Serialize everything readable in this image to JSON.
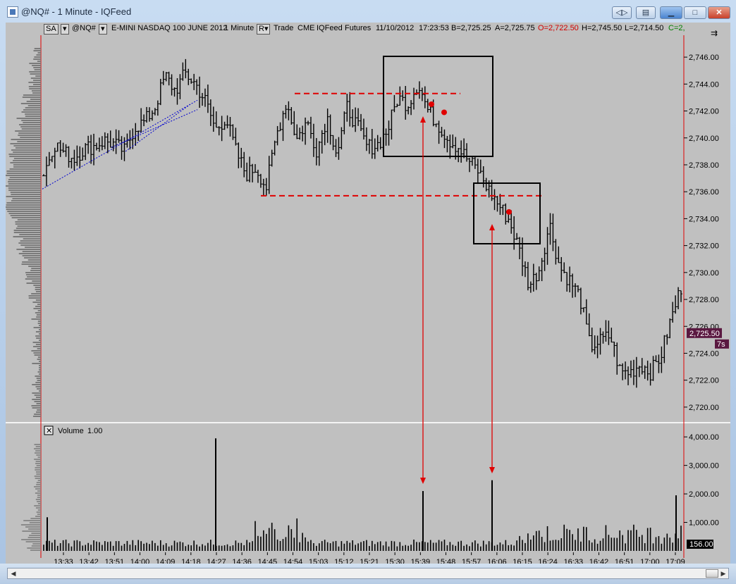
{
  "window": {
    "title": "@NQ# - 1 Minute - IQFeed"
  },
  "toolbar": {
    "studies_btn": "SA",
    "symbol": "@NQ#",
    "description": "E-MINI NASDAQ 100 JUNE 2012",
    "interval": "1 Minute",
    "r_btn": "R",
    "trade": "Trade",
    "exchange": "CME",
    "feed": "IQFeed",
    "type": "Futures",
    "date": "11/10/2012",
    "time": "17:23:53",
    "bid": "B=2,725.25",
    "ask": "A=2,725.75",
    "open": "O=2,722.50",
    "high": "H=2,745.50",
    "low": "L=2,714.50",
    "close": "C=2,"
  },
  "volume_panel": {
    "title": "Volume",
    "scale": "1.00",
    "close_glyph": "✕"
  },
  "price_marker": {
    "value": "2,725.50",
    "countdown": "7s"
  },
  "volume_marker": {
    "value": "156.00"
  },
  "colors": {
    "bar": "#000000",
    "background": "#c0c0c0",
    "red_lines": "#e00000",
    "marker": "#5a1840"
  },
  "chart_data": {
    "type": "ohlc",
    "price_axis": {
      "min": 2719,
      "max": 2747,
      "ticks": [
        "2,746.00",
        "2,744.00",
        "2,742.00",
        "2,740.00",
        "2,738.00",
        "2,736.00",
        "2,734.00",
        "2,732.00",
        "2,730.00",
        "2,728.00",
        "2,726.00",
        "2,724.00",
        "2,722.00",
        "2,720.00"
      ]
    },
    "volume_axis": {
      "min": 0,
      "max": 4400,
      "ticks": [
        "4,000.00",
        "3,000.00",
        "2,000.00",
        "1,000.00"
      ]
    },
    "time_labels": [
      "13:33",
      "13:42",
      "13:51",
      "14:00",
      "14:09",
      "14:18",
      "14:27",
      "14:36",
      "14:45",
      "14:54",
      "15:03",
      "15:12",
      "15:21",
      "15:30",
      "15:39",
      "15:48",
      "15:57",
      "16:06",
      "16:15",
      "16:24",
      "16:33",
      "16:42",
      "16:51",
      "17:00",
      "17:09"
    ],
    "close_path": [
      2737.3,
      2739.6,
      2738.9,
      2738.5,
      2739.2,
      2739.4,
      2739.8,
      2739.5,
      2739.0,
      2740.8,
      2741.2,
      2742.3,
      2744.6,
      2743.5,
      2744.8,
      2744.0,
      2742.7,
      2740.6,
      2741.5,
      2739.0,
      2737.3,
      2737.8,
      2736.3,
      2740.2,
      2742.7,
      2739.9,
      2741.2,
      2739.1,
      2741.6,
      2738.8,
      2742.3,
      2740.8,
      2739.3,
      2739.5,
      2740.6,
      2743.0,
      2742.5,
      2744.1,
      2742.0,
      2741.0,
      2739.9,
      2739.3,
      2738.3,
      2737.5,
      2736.1,
      2735.0,
      2733.9,
      2731.7,
      2729.0,
      2730.3,
      2733.6,
      2730.4,
      2729.4,
      2728.2,
      2724.5,
      2724.9,
      2725.3,
      2722.6,
      2722.6,
      2723.2,
      2722.6,
      2723.8,
      2726.5,
      2728.9
    ],
    "resistance": 2743.3,
    "support": 2735.7,
    "markers": [
      2742.5,
      2741.9,
      2734.5
    ],
    "volume_spikes": [
      {
        "x": "14:27",
        "v": 3950
      },
      {
        "x": "15:39",
        "v": 2100
      },
      {
        "x": "16:06",
        "v": 2480
      },
      {
        "x": "17:09",
        "v": 1950
      }
    ]
  }
}
